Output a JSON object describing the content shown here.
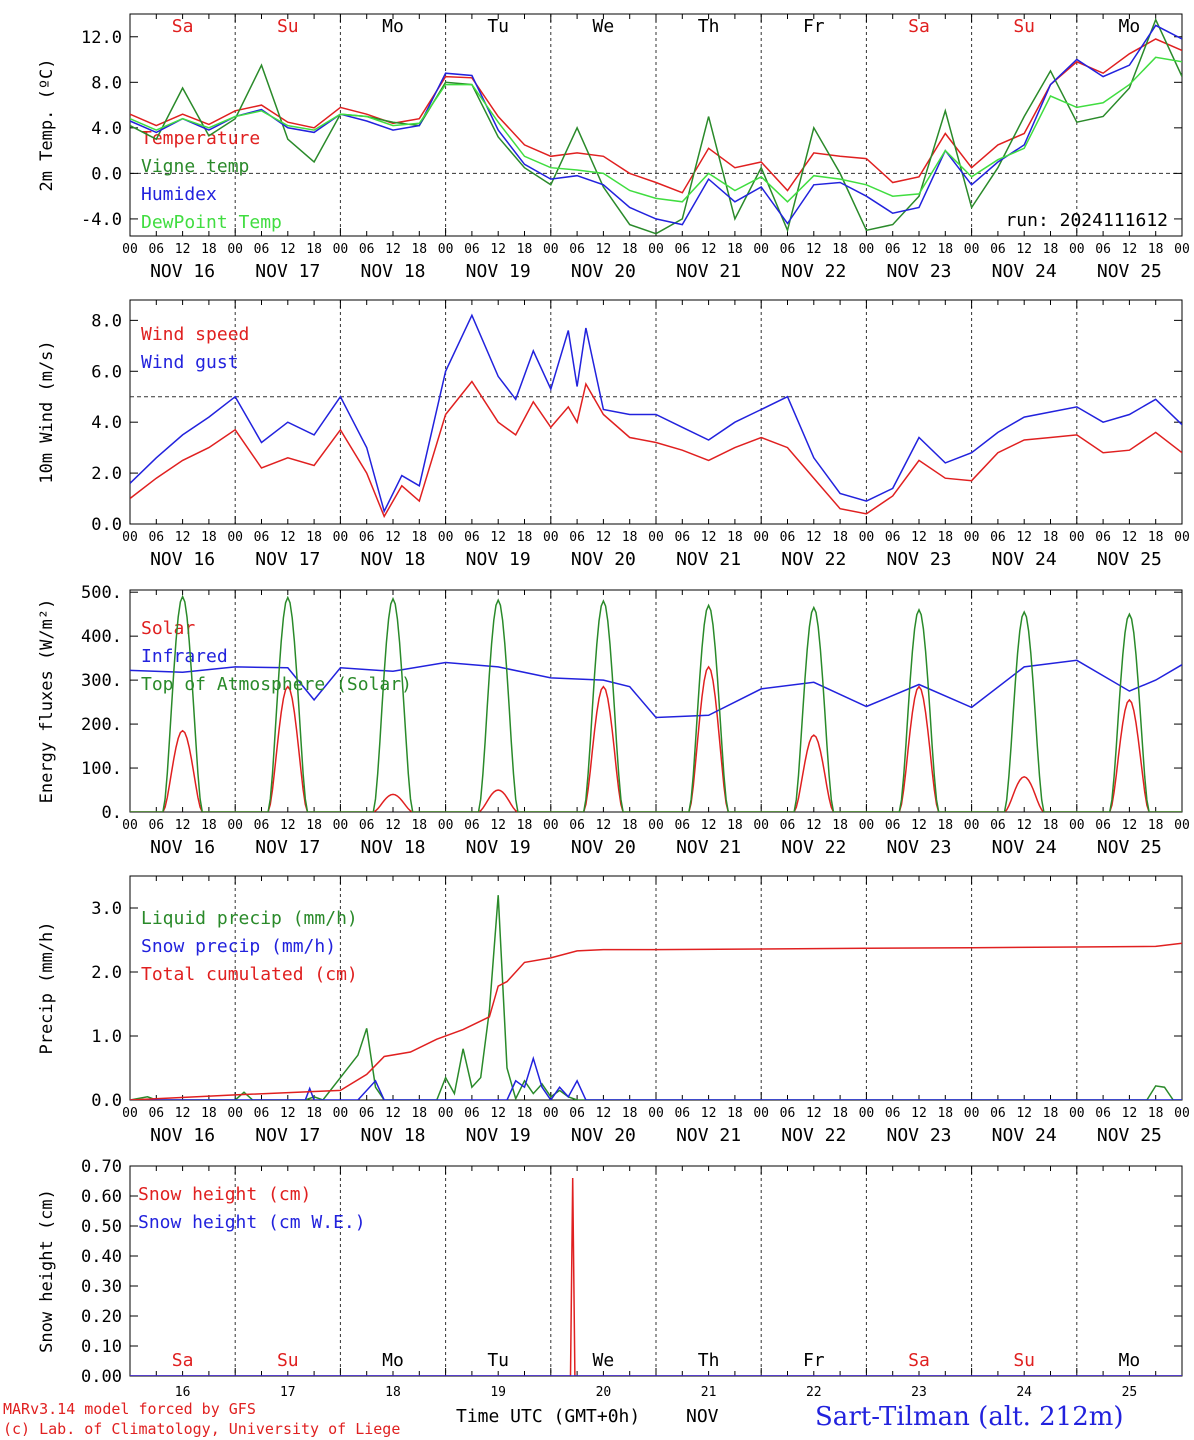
{
  "run_label": "run: 2024111612",
  "x_axis": {
    "hours": [
      "00",
      "06",
      "12",
      "18"
    ],
    "date_labels": [
      "NOV 16",
      "NOV 17",
      "NOV 18",
      "NOV 19",
      "NOV 20",
      "NOV 21",
      "NOV 22",
      "NOV 23",
      "NOV 24",
      "NOV 25"
    ],
    "day_numbers": [
      "16",
      "17",
      "18",
      "19",
      "20",
      "21",
      "22",
      "23",
      "24",
      "25"
    ],
    "weekday_labels": [
      "Sa",
      "Su",
      "Mo",
      "Tu",
      "We",
      "Th",
      "Fr",
      "Sa",
      "Su",
      "Mo"
    ],
    "weekday_colors": [
      "#e02020",
      "#e02020",
      "#000000",
      "#000000",
      "#000000",
      "#000000",
      "#000000",
      "#e02020",
      "#e02020",
      "#000000"
    ],
    "axis_title": "Time UTC (GMT+0h)",
    "month_label": "NOV"
  },
  "footer": {
    "model": "MARv3.14 model forced by GFS",
    "copyright": "(c) Lab. of Climatology, University of Liege",
    "station": "Sart-Tilman (alt. 212m)"
  },
  "chart_data": [
    {
      "type": "line",
      "id": "temp",
      "ylabel": "2m Temp. (ºC)",
      "ylim": [
        -5.5,
        14.0
      ],
      "yticks": [
        12.0,
        8.0,
        4.0,
        0.0,
        -4.0
      ],
      "ytick_labels": [
        "12.0",
        "8.0",
        "4.0",
        "0.0",
        "-4.0"
      ],
      "ref_line": 0.0,
      "x_unit": "hours since NOV 16 00 UTC",
      "series": [
        {
          "name": "Temperature",
          "color": "#e02020",
          "x": [
            0,
            6,
            12,
            18,
            24,
            30,
            36,
            42,
            48,
            54,
            60,
            66,
            72,
            78,
            84,
            90,
            96,
            102,
            108,
            114,
            120,
            126,
            132,
            138,
            144,
            150,
            156,
            162,
            168,
            174,
            180,
            186,
            192,
            198,
            204,
            210,
            216,
            222,
            228,
            234,
            240
          ],
          "y": [
            5.2,
            4.2,
            5.2,
            4.3,
            5.5,
            6.0,
            4.5,
            4.0,
            5.8,
            5.2,
            4.4,
            4.8,
            8.5,
            8.4,
            5.0,
            2.5,
            1.5,
            1.8,
            1.5,
            0.0,
            -0.8,
            -1.7,
            2.2,
            0.5,
            1.0,
            -1.5,
            1.8,
            1.5,
            1.3,
            -0.8,
            -0.3,
            3.5,
            0.5,
            2.5,
            3.5,
            7.8,
            9.8,
            8.8,
            10.5,
            11.8,
            10.8
          ]
        },
        {
          "name": "Vigne temp",
          "color": "#2a8a2a",
          "x": [
            0,
            6,
            12,
            18,
            24,
            30,
            36,
            42,
            48,
            54,
            60,
            66,
            72,
            78,
            84,
            90,
            96,
            102,
            108,
            114,
            120,
            126,
            132,
            138,
            144,
            150,
            156,
            162,
            168,
            174,
            180,
            186,
            192,
            198,
            204,
            210,
            216,
            222,
            228,
            234,
            240
          ],
          "y": [
            4.2,
            3.0,
            7.5,
            3.3,
            4.8,
            9.5,
            3.0,
            1.0,
            5.2,
            5.0,
            4.5,
            4.2,
            8.0,
            7.8,
            3.2,
            0.5,
            -1.0,
            4.0,
            -1.2,
            -4.5,
            -5.3,
            -4.0,
            5.0,
            -4.0,
            0.5,
            -5.0,
            4.0,
            0.0,
            -5.0,
            -4.5,
            -2.0,
            5.5,
            -3.0,
            0.5,
            5.0,
            9.0,
            4.5,
            5.0,
            7.5,
            13.5,
            8.5
          ]
        },
        {
          "name": "Humidex",
          "color": "#2222dd",
          "x": [
            0,
            6,
            12,
            18,
            24,
            30,
            36,
            42,
            48,
            54,
            60,
            66,
            72,
            78,
            84,
            90,
            96,
            102,
            108,
            114,
            120,
            126,
            132,
            138,
            144,
            150,
            156,
            162,
            168,
            174,
            180,
            186,
            192,
            198,
            204,
            210,
            216,
            222,
            228,
            234,
            240
          ],
          "y": [
            4.6,
            3.6,
            4.8,
            3.8,
            5.0,
            5.6,
            4.0,
            3.6,
            5.2,
            4.6,
            3.8,
            4.2,
            8.8,
            8.6,
            3.8,
            0.8,
            -0.5,
            -0.2,
            -1.0,
            -3.0,
            -4.0,
            -4.5,
            -0.5,
            -2.5,
            -1.2,
            -4.4,
            -1.0,
            -0.8,
            -2.0,
            -3.5,
            -3.0,
            2.0,
            -1.0,
            1.0,
            2.5,
            7.8,
            10.0,
            8.5,
            9.5,
            13.0,
            11.8
          ]
        },
        {
          "name": "DewPoint Temp",
          "color": "#40dd40",
          "x": [
            0,
            6,
            12,
            18,
            24,
            30,
            36,
            42,
            48,
            54,
            60,
            66,
            72,
            78,
            84,
            90,
            96,
            102,
            108,
            114,
            120,
            126,
            132,
            138,
            144,
            150,
            156,
            162,
            168,
            174,
            180,
            186,
            192,
            198,
            204,
            210,
            216,
            222,
            228,
            234,
            240
          ],
          "y": [
            4.8,
            3.8,
            4.8,
            4.0,
            5.0,
            5.5,
            4.2,
            3.8,
            5.2,
            5.0,
            4.2,
            4.4,
            7.8,
            7.8,
            4.5,
            1.5,
            0.5,
            0.3,
            0.0,
            -1.5,
            -2.2,
            -2.5,
            0.0,
            -1.5,
            -0.3,
            -2.5,
            -0.2,
            -0.5,
            -1.0,
            -2.0,
            -1.8,
            2.0,
            -0.3,
            1.2,
            2.2,
            6.8,
            5.8,
            6.2,
            7.8,
            10.2,
            9.8
          ]
        }
      ]
    },
    {
      "type": "line",
      "id": "wind",
      "ylabel": "10m Wind (m/s)",
      "ylim": [
        0.0,
        8.8
      ],
      "yticks": [
        8.0,
        6.0,
        4.0,
        2.0,
        0.0
      ],
      "ytick_labels": [
        "8.0",
        "6.0",
        "4.0",
        "2.0",
        "0.0"
      ],
      "ref_line": 5.0,
      "x_unit": "hours since NOV 16 00 UTC",
      "series": [
        {
          "name": "Wind speed",
          "color": "#e02020",
          "x": [
            0,
            6,
            12,
            18,
            24,
            30,
            36,
            42,
            48,
            54,
            58,
            62,
            66,
            72,
            78,
            84,
            88,
            92,
            96,
            100,
            102,
            104,
            108,
            114,
            120,
            126,
            132,
            138,
            144,
            150,
            156,
            162,
            168,
            174,
            180,
            186,
            192,
            198,
            204,
            210,
            216,
            222,
            228,
            234,
            240
          ],
          "y": [
            1.0,
            1.8,
            2.5,
            3.0,
            3.7,
            2.2,
            2.6,
            2.3,
            3.7,
            2.0,
            0.3,
            1.5,
            0.9,
            4.3,
            5.6,
            4.0,
            3.5,
            4.8,
            3.8,
            4.6,
            4.0,
            5.5,
            4.3,
            3.4,
            3.2,
            2.9,
            2.5,
            3.0,
            3.4,
            3.0,
            1.8,
            0.6,
            0.4,
            1.1,
            2.5,
            1.8,
            1.7,
            2.8,
            3.3,
            3.4,
            3.5,
            2.8,
            2.9,
            3.6,
            2.8
          ]
        },
        {
          "name": "Wind gust",
          "color": "#2222dd",
          "x": [
            0,
            6,
            12,
            18,
            24,
            30,
            36,
            42,
            48,
            54,
            58,
            62,
            66,
            72,
            78,
            84,
            88,
            92,
            96,
            100,
            102,
            104,
            108,
            114,
            120,
            126,
            132,
            138,
            144,
            150,
            156,
            162,
            168,
            174,
            180,
            186,
            192,
            198,
            204,
            210,
            216,
            222,
            228,
            234,
            240
          ],
          "y": [
            1.6,
            2.6,
            3.5,
            4.2,
            5.0,
            3.2,
            4.0,
            3.5,
            5.0,
            3.0,
            0.5,
            1.9,
            1.5,
            6.0,
            8.2,
            5.8,
            4.9,
            6.8,
            5.3,
            7.6,
            5.4,
            7.7,
            4.5,
            4.3,
            4.3,
            3.8,
            3.3,
            4.0,
            4.5,
            5.0,
            2.6,
            1.2,
            0.9,
            1.4,
            3.4,
            2.4,
            2.8,
            3.6,
            4.2,
            4.4,
            4.6,
            4.0,
            4.3,
            4.9,
            3.9
          ]
        }
      ]
    },
    {
      "type": "line",
      "id": "energy",
      "ylabel": "Energy fluxes (W/m²)",
      "ylim": [
        0,
        505
      ],
      "yticks": [
        500,
        400,
        300,
        200,
        100,
        0
      ],
      "ytick_labels": [
        "500.",
        "400.",
        "300.",
        "200.",
        "100.",
        "0."
      ],
      "x_unit": "hours since NOV 16 00 UTC",
      "daytime_hours": [
        7.5,
        16.5
      ],
      "series": [
        {
          "name": "Solar",
          "color": "#e02020",
          "daily_peak": [
            185,
            285,
            40,
            50,
            285,
            330,
            175,
            285,
            80,
            255
          ]
        },
        {
          "name": "Infrared",
          "color": "#2222dd",
          "x": [
            0,
            12,
            24,
            36,
            42,
            48,
            60,
            72,
            84,
            96,
            108,
            114,
            120,
            132,
            144,
            156,
            168,
            180,
            192,
            204,
            216,
            228,
            234,
            240
          ],
          "y": [
            322,
            318,
            330,
            328,
            255,
            328,
            320,
            340,
            330,
            305,
            300,
            285,
            215,
            220,
            280,
            295,
            240,
            290,
            238,
            330,
            345,
            275,
            300,
            335
          ]
        },
        {
          "name": "Top of Atmosphere (Solar)",
          "color": "#2a8a2a",
          "daily_peak": [
            490,
            488,
            485,
            482,
            480,
            470,
            465,
            460,
            455,
            450
          ]
        }
      ]
    },
    {
      "type": "line",
      "id": "precip",
      "ylabel": "Precip (mm/h)",
      "ylim": [
        0.0,
        3.5
      ],
      "yticks": [
        3.0,
        2.0,
        1.0,
        0.0
      ],
      "ytick_labels": [
        "3.0",
        "2.0",
        "1.0",
        "0.0"
      ],
      "x_unit": "hours since NOV 16 00 UTC",
      "series": [
        {
          "name": "Liquid precip (mm/h)",
          "color": "#2a8a2a",
          "x": [
            0,
            4,
            6,
            24,
            26,
            28,
            40,
            42,
            44,
            52,
            54,
            56,
            58,
            60,
            70,
            72,
            74,
            76,
            78,
            80,
            82,
            84,
            86,
            88,
            90,
            92,
            94,
            96,
            98,
            100,
            102,
            104,
            114,
            232,
            234,
            236,
            238,
            240
          ],
          "y": [
            0.0,
            0.05,
            0.0,
            0.0,
            0.12,
            0.0,
            0.0,
            0.05,
            0.0,
            0.7,
            1.12,
            0.2,
            0.0,
            0.0,
            0.0,
            0.35,
            0.1,
            0.8,
            0.2,
            0.35,
            1.4,
            3.2,
            0.5,
            0.02,
            0.3,
            0.1,
            0.25,
            0.05,
            0.15,
            0.05,
            0.0,
            0.0,
            0.0,
            0.0,
            0.22,
            0.2,
            0.0,
            0.0
          ]
        },
        {
          "name": "Snow precip (mm/h)",
          "color": "#2222dd",
          "x": [
            0,
            40,
            41,
            42,
            43,
            52,
            56,
            58,
            60,
            86,
            88,
            90,
            92,
            94,
            96,
            98,
            100,
            102,
            104,
            106,
            240
          ],
          "y": [
            0.0,
            0.0,
            0.18,
            0.0,
            0.0,
            0.0,
            0.3,
            0.0,
            0.0,
            0.0,
            0.3,
            0.2,
            0.65,
            0.2,
            0.0,
            0.2,
            0.05,
            0.3,
            0.0,
            0.0,
            0.0
          ]
        },
        {
          "name": "Total cumulated (cm)",
          "color": "#e02020",
          "x": [
            0,
            24,
            48,
            54,
            58,
            64,
            70,
            76,
            82,
            84,
            86,
            90,
            96,
            102,
            108,
            120,
            144,
            168,
            192,
            216,
            234,
            240
          ],
          "y": [
            0.0,
            0.08,
            0.15,
            0.4,
            0.68,
            0.75,
            0.95,
            1.1,
            1.3,
            1.78,
            1.85,
            2.15,
            2.22,
            2.33,
            2.35,
            2.35,
            2.36,
            2.37,
            2.38,
            2.39,
            2.4,
            2.45
          ]
        }
      ]
    },
    {
      "type": "line",
      "id": "snow",
      "ylabel": "Snow height (cm)",
      "ylim": [
        0.0,
        0.7
      ],
      "yticks": [
        0.7,
        0.6,
        0.5,
        0.4,
        0.3,
        0.2,
        0.1,
        0.0
      ],
      "ytick_labels": [
        "0.70",
        "0.60",
        "0.50",
        "0.40",
        "0.30",
        "0.20",
        "0.10",
        "0.00"
      ],
      "x_unit": "hours since NOV 16 00 UTC",
      "series": [
        {
          "name": "Snow height (cm)",
          "color": "#e02020",
          "x": [
            0,
            100.5,
            101,
            101.5,
            240
          ],
          "y": [
            0.0,
            0.0,
            0.66,
            0.0,
            0.0
          ]
        },
        {
          "name": "Snow height (cm W.E.)",
          "color": "#2222dd",
          "x": [
            0,
            240
          ],
          "y": [
            0.0,
            0.0
          ]
        }
      ]
    }
  ]
}
